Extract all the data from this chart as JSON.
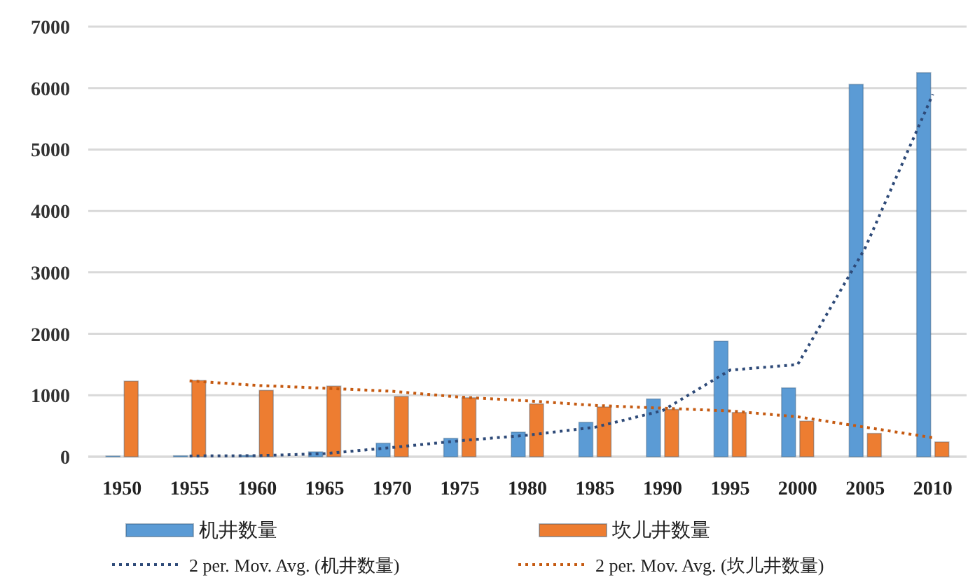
{
  "chart_data": {
    "type": "bar",
    "categories": [
      "1950",
      "1955",
      "1960",
      "1965",
      "1970",
      "1975",
      "1980",
      "1985",
      "1990",
      "1995",
      "2000",
      "2005",
      "2010"
    ],
    "series": [
      {
        "name": "机井数量",
        "color": "#5b9bd5",
        "values": [
          10,
          15,
          20,
          80,
          220,
          300,
          400,
          560,
          940,
          1880,
          1120,
          6060,
          6250
        ]
      },
      {
        "name": "坎儿井数量",
        "color": "#ed7d31",
        "values": [
          1230,
          1240,
          1080,
          1150,
          980,
          960,
          860,
          810,
          770,
          720,
          580,
          380,
          240
        ]
      },
      {
        "name": "2 per. Mov. Avg. (机井数量)",
        "type": "line",
        "line_style": "dotted",
        "color": "#2e4a78",
        "values": [
          null,
          12,
          17,
          50,
          150,
          260,
          350,
          480,
          750,
          1410,
          1500,
          3400,
          5900
        ]
      },
      {
        "name": "2 per. Mov. Avg. (坎儿井数量)",
        "type": "line",
        "line_style": "dotted",
        "color": "#c55a11",
        "values": [
          null,
          1235,
          1160,
          1115,
          1065,
          970,
          910,
          835,
          790,
          745,
          650,
          480,
          310
        ]
      }
    ],
    "ylim": [
      0,
      7000
    ],
    "yticks": [
      0,
      1000,
      2000,
      3000,
      4000,
      5000,
      6000,
      7000
    ],
    "grid": "y",
    "legend": "bottom"
  }
}
